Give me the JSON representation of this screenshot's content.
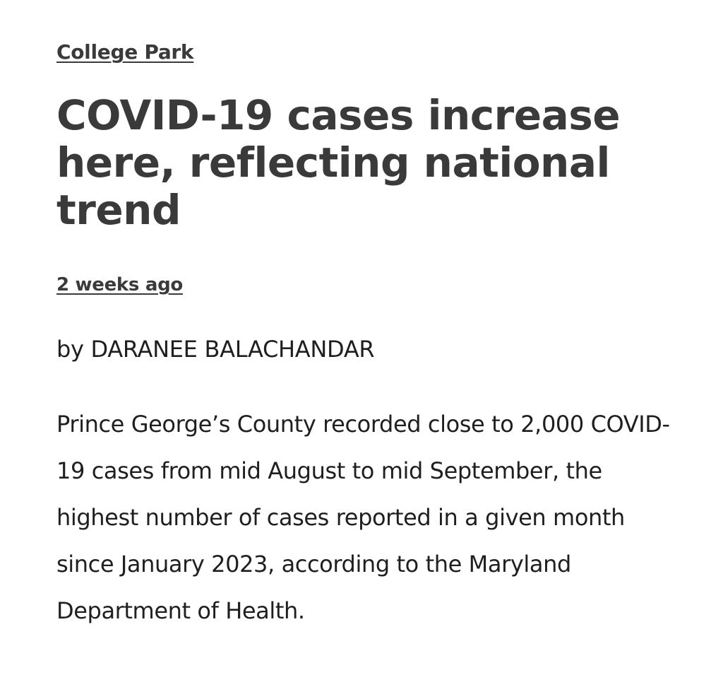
{
  "article": {
    "category": "College Park",
    "headline": "COVID-19 cases increase here, reflecting national trend",
    "timestamp": "2 weeks ago",
    "byline": "by DARANEE BALACHANDAR",
    "paragraph": "Prince George’s County recorded close to 2,000 COVID-19 cases from mid August to mid September, the highest number of cases reported in a given month since January 2023, according to the Maryland Department of Health."
  },
  "colors": {
    "text": "#3a3a3a",
    "body_text": "#1f1f1f",
    "background": "#ffffff"
  }
}
